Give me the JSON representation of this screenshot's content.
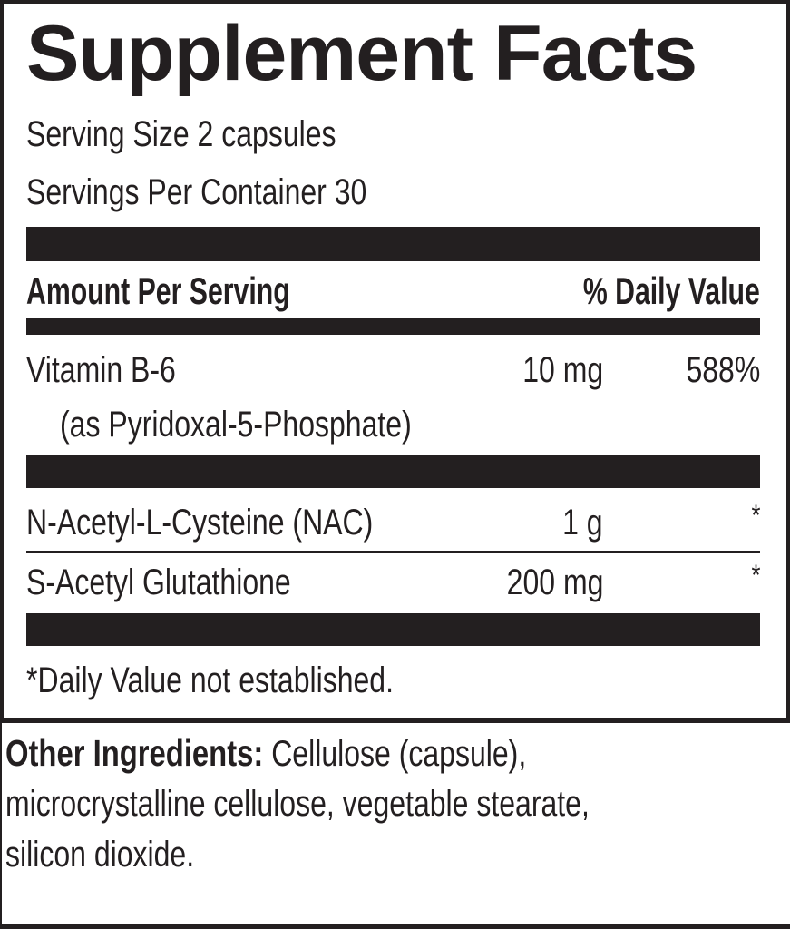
{
  "title": "Supplement Facts",
  "serving_size": "Serving Size 2 capsules",
  "servings_per_container": "Servings Per Container 30",
  "header": {
    "amount": "Amount Per Serving",
    "daily_value": "% Daily Value"
  },
  "ingredients": [
    {
      "name": "Vitamin B-6",
      "subname": "(as Pyridoxal-5-Phosphate)",
      "amount": "10 mg",
      "dv": "588%"
    },
    {
      "name": "N-Acetyl-L-Cysteine (NAC)",
      "amount": "1 g",
      "dv": "*"
    },
    {
      "name": "S-Acetyl Glutathione",
      "amount": "200 mg",
      "dv": "*"
    }
  ],
  "footnote": "*Daily Value not established.",
  "other_ingredients": {
    "label": "Other Ingredients:",
    "line1": "Cellulose (capsule),",
    "line2": "microcrystalline cellulose, vegetable stearate,",
    "line3": "silicon dioxide."
  }
}
